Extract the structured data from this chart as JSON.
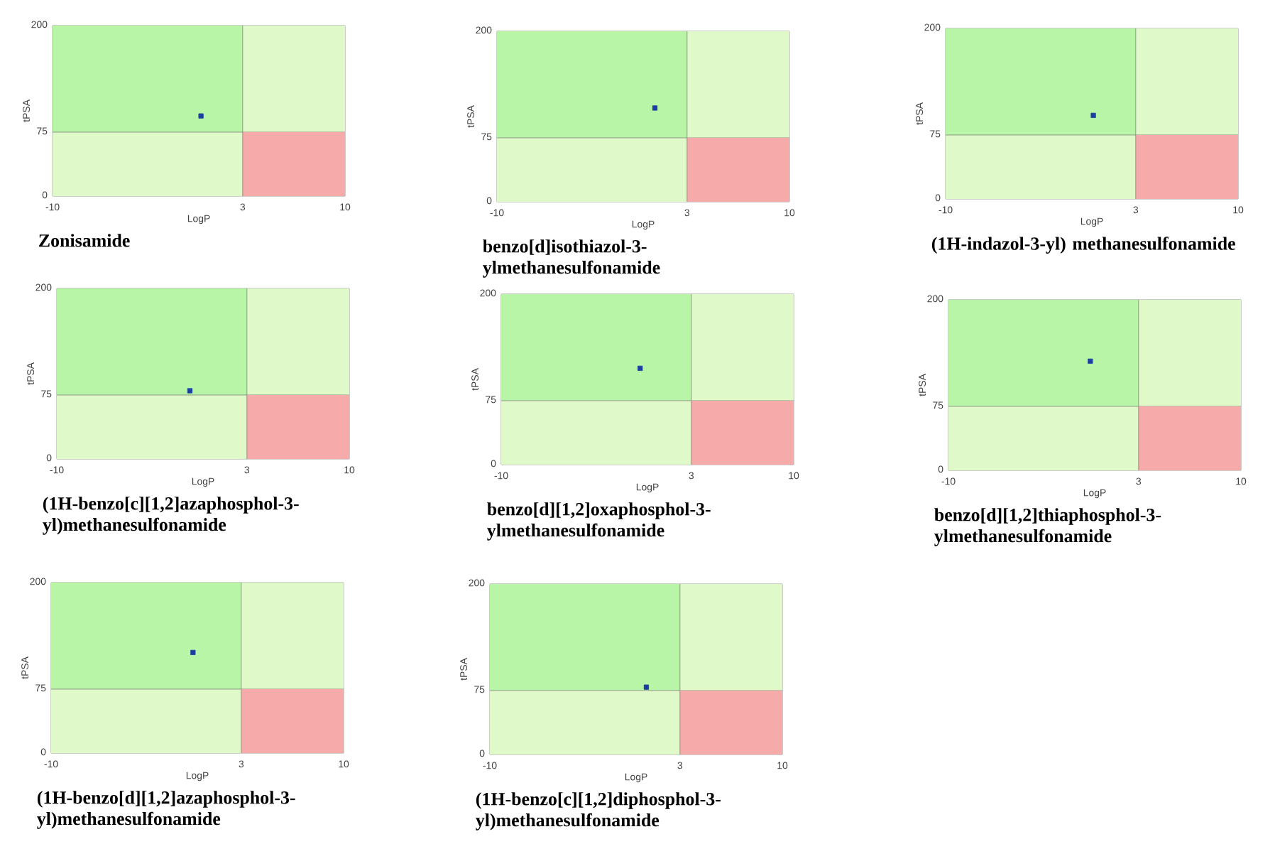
{
  "chart_data": [
    {
      "type": "scatter",
      "title": "Zonisamide",
      "xlabel": "LogP",
      "ylabel": "tPSA",
      "xlim": [
        -10,
        10
      ],
      "ylim": [
        0,
        200
      ],
      "xticks": [
        -10,
        3,
        10
      ],
      "yticks": [
        0,
        75,
        200
      ],
      "marker": "square",
      "bands": [
        {
          "axis": "y",
          "from": 0,
          "to": 200,
          "color": "#e0f9c8"
        },
        {
          "axis": "y",
          "from": 75,
          "to": 200,
          "color": "#b9f5a6"
        },
        {
          "axis": "x",
          "from": 3,
          "to": 10,
          "color": "#f7aaaa"
        }
      ],
      "series": [
        {
          "color": "#1a3fa0",
          "x": [
            0.15
          ],
          "values": [
            94
          ]
        }
      ]
    },
    {
      "type": "scatter",
      "title": "benzo[d]isothiazol-3-ylmethanesulfonamide",
      "xlabel": "LogP",
      "ylabel": "tPSA",
      "xlim": [
        -10,
        10
      ],
      "ylim": [
        0,
        200
      ],
      "xticks": [
        -10,
        3,
        10
      ],
      "yticks": [
        0,
        75,
        200
      ],
      "marker": "square",
      "bands": [
        {
          "axis": "y",
          "from": 0,
          "to": 200,
          "color": "#e0f9c8"
        },
        {
          "axis": "y",
          "from": 75,
          "to": 200,
          "color": "#b9f5a6"
        },
        {
          "axis": "x",
          "from": 3,
          "to": 10,
          "color": "#f7aaaa"
        }
      ],
      "series": [
        {
          "color": "#1a3fa0",
          "x": [
            0.8
          ],
          "values": [
            110
          ]
        }
      ]
    },
    {
      "type": "scatter",
      "title": "(1H-indazol-3-yl) methanesulfonamide",
      "xlabel": "LogP",
      "ylabel": "tPSA",
      "xlim": [
        -10,
        10
      ],
      "ylim": [
        0,
        200
      ],
      "xticks": [
        -10,
        3,
        10
      ],
      "yticks": [
        0,
        75,
        200
      ],
      "marker": "square",
      "bands": [
        {
          "axis": "y",
          "from": 0,
          "to": 200,
          "color": "#e0f9c8"
        },
        {
          "axis": "y",
          "from": 75,
          "to": 200,
          "color": "#b9f5a6"
        },
        {
          "axis": "x",
          "from": 3,
          "to": 10,
          "color": "#f7aaaa"
        }
      ],
      "series": [
        {
          "color": "#1a3fa0",
          "x": [
            0.1
          ],
          "values": [
            98
          ]
        }
      ]
    },
    {
      "type": "scatter",
      "title": "(1H-benzo[c][1,2]azaphosphol-3-yl)methanesulfonamide",
      "xlabel": "LogP",
      "ylabel": "tPSA",
      "xlim": [
        -10,
        10
      ],
      "ylim": [
        0,
        200
      ],
      "xticks": [
        -10,
        3,
        10
      ],
      "yticks": [
        0,
        75,
        200
      ],
      "marker": "square",
      "bands": [
        {
          "axis": "y",
          "from": 0,
          "to": 200,
          "color": "#e0f9c8"
        },
        {
          "axis": "y",
          "from": 75,
          "to": 200,
          "color": "#b9f5a6"
        },
        {
          "axis": "x",
          "from": 3,
          "to": 10,
          "color": "#f7aaaa"
        }
      ],
      "series": [
        {
          "color": "#1a3fa0",
          "x": [
            -0.9
          ],
          "values": [
            80
          ]
        }
      ]
    },
    {
      "type": "scatter",
      "title": "benzo[d][1,2]oxaphosphol-3-ylmethanesulfonamide",
      "xlabel": "LogP",
      "ylabel": "tPSA",
      "xlim": [
        -10,
        10
      ],
      "ylim": [
        0,
        200
      ],
      "xticks": [
        -10,
        3,
        10
      ],
      "yticks": [
        0,
        75,
        200
      ],
      "marker": "square",
      "bands": [
        {
          "axis": "y",
          "from": 0,
          "to": 200,
          "color": "#e0f9c8"
        },
        {
          "axis": "y",
          "from": 75,
          "to": 200,
          "color": "#b9f5a6"
        },
        {
          "axis": "x",
          "from": 3,
          "to": 10,
          "color": "#f7aaaa"
        }
      ],
      "series": [
        {
          "color": "#1a3fa0",
          "x": [
            -0.5
          ],
          "values": [
            113
          ]
        }
      ]
    },
    {
      "type": "scatter",
      "title": "benzo[d][1,2]thiaphosphol-3-ylmethanesulfonamide",
      "xlabel": "LogP",
      "ylabel": "tPSA",
      "xlim": [
        -10,
        10
      ],
      "ylim": [
        0,
        200
      ],
      "xticks": [
        -10,
        3,
        10
      ],
      "yticks": [
        0,
        75,
        200
      ],
      "marker": "square",
      "bands": [
        {
          "axis": "y",
          "from": 0,
          "to": 200,
          "color": "#e0f9c8"
        },
        {
          "axis": "y",
          "from": 75,
          "to": 200,
          "color": "#b9f5a6"
        },
        {
          "axis": "x",
          "from": 3,
          "to": 10,
          "color": "#f7aaaa"
        }
      ],
      "series": [
        {
          "color": "#1a3fa0",
          "x": [
            -0.3
          ],
          "values": [
            128
          ]
        }
      ]
    },
    {
      "type": "scatter",
      "title": "(1H-benzo[d][1,2]azaphosphol-3-yl)methanesulfonamide",
      "xlabel": "LogP",
      "ylabel": "tPSA",
      "xlim": [
        -10,
        10
      ],
      "ylim": [
        0,
        200
      ],
      "xticks": [
        -10,
        3,
        10
      ],
      "yticks": [
        0,
        75,
        200
      ],
      "marker": "square",
      "bands": [
        {
          "axis": "y",
          "from": 0,
          "to": 200,
          "color": "#e0f9c8"
        },
        {
          "axis": "y",
          "from": 75,
          "to": 200,
          "color": "#b9f5a6"
        },
        {
          "axis": "x",
          "from": 3,
          "to": 10,
          "color": "#f7aaaa"
        }
      ],
      "series": [
        {
          "color": "#1a3fa0",
          "x": [
            -0.3
          ],
          "values": [
            118
          ]
        }
      ]
    },
    {
      "type": "scatter",
      "title": "(1H-benzo[c][1,2]diphosphol-3-yl)methanesulfonamide",
      "xlabel": "LogP",
      "ylabel": "tPSA",
      "xlim": [
        -10,
        10
      ],
      "ylim": [
        0,
        200
      ],
      "xticks": [
        -10,
        3,
        10
      ],
      "yticks": [
        0,
        75,
        200
      ],
      "marker": "square",
      "bands": [
        {
          "axis": "y",
          "from": 0,
          "to": 200,
          "color": "#e0f9c8"
        },
        {
          "axis": "y",
          "from": 75,
          "to": 200,
          "color": "#b9f5a6"
        },
        {
          "axis": "x",
          "from": 3,
          "to": 10,
          "color": "#f7aaaa"
        }
      ],
      "series": [
        {
          "color": "#1a3fa0",
          "x": [
            0.7
          ],
          "values": [
            79
          ]
        }
      ]
    }
  ]
}
